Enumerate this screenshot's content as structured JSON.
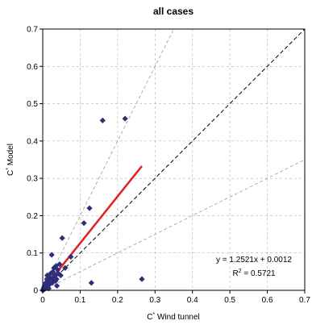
{
  "chart_data": {
    "type": "scatter",
    "title": "all cases",
    "xlabel_main": "C",
    "xlabel_sup": "*",
    "xlabel_rest": " Wind tunnel",
    "ylabel_main": "C",
    "ylabel_sup": "*",
    "ylabel_rest": " Model",
    "xlim": [
      0,
      0.7
    ],
    "ylim": [
      0,
      0.7
    ],
    "x_ticks": [
      "0",
      "0.1",
      "0.2",
      "0.3",
      "0.4",
      "0.5",
      "0.6",
      "0.7"
    ],
    "y_ticks": [
      "0",
      "0.1",
      "0.2",
      "0.3",
      "0.4",
      "0.5",
      "0.6",
      "0.7"
    ],
    "grid": "dashed",
    "marker_color": "#2e2e7a",
    "fit_color": "#e02020",
    "points": [
      {
        "x": 0.0,
        "y": 0.0
      },
      {
        "x": 0.002,
        "y": 0.005
      },
      {
        "x": 0.004,
        "y": 0.01
      },
      {
        "x": 0.005,
        "y": 0.003
      },
      {
        "x": 0.007,
        "y": 0.015
      },
      {
        "x": 0.008,
        "y": 0.02
      },
      {
        "x": 0.01,
        "y": 0.008
      },
      {
        "x": 0.011,
        "y": 0.03
      },
      {
        "x": 0.012,
        "y": 0.04
      },
      {
        "x": 0.013,
        "y": 0.012
      },
      {
        "x": 0.015,
        "y": 0.025
      },
      {
        "x": 0.016,
        "y": 0.005
      },
      {
        "x": 0.018,
        "y": 0.035
      },
      {
        "x": 0.02,
        "y": 0.018
      },
      {
        "x": 0.021,
        "y": 0.045
      },
      {
        "x": 0.022,
        "y": 0.03
      },
      {
        "x": 0.024,
        "y": 0.095
      },
      {
        "x": 0.025,
        "y": 0.02
      },
      {
        "x": 0.027,
        "y": 0.05
      },
      {
        "x": 0.028,
        "y": 0.035
      },
      {
        "x": 0.03,
        "y": 0.06
      },
      {
        "x": 0.032,
        "y": 0.04
      },
      {
        "x": 0.034,
        "y": 0.025
      },
      {
        "x": 0.035,
        "y": 0.065
      },
      {
        "x": 0.037,
        "y": 0.03
      },
      {
        "x": 0.038,
        "y": 0.012
      },
      {
        "x": 0.04,
        "y": 0.055
      },
      {
        "x": 0.042,
        "y": 0.045
      },
      {
        "x": 0.045,
        "y": 0.07
      },
      {
        "x": 0.048,
        "y": 0.04
      },
      {
        "x": 0.052,
        "y": 0.14
      },
      {
        "x": 0.06,
        "y": 0.06
      },
      {
        "x": 0.075,
        "y": 0.09
      },
      {
        "x": 0.11,
        "y": 0.18
      },
      {
        "x": 0.125,
        "y": 0.22
      },
      {
        "x": 0.13,
        "y": 0.02
      },
      {
        "x": 0.16,
        "y": 0.455
      },
      {
        "x": 0.22,
        "y": 0.46
      },
      {
        "x": 0.265,
        "y": 0.03
      }
    ],
    "fit_line": {
      "slope": 1.2521,
      "intercept": 0.0012,
      "x_range": [
        0,
        0.265
      ]
    },
    "reference_lines": [
      {
        "slope": 1,
        "style": "black-dashed"
      },
      {
        "slope": 2,
        "style": "grey-dashed"
      },
      {
        "slope": 0.5,
        "style": "grey-dashed"
      }
    ],
    "equation": "y = 1.2521x + 0.0012",
    "r2_prefix": "R",
    "r2_sup": "2",
    "r2_suffix": " = 0.5721"
  }
}
